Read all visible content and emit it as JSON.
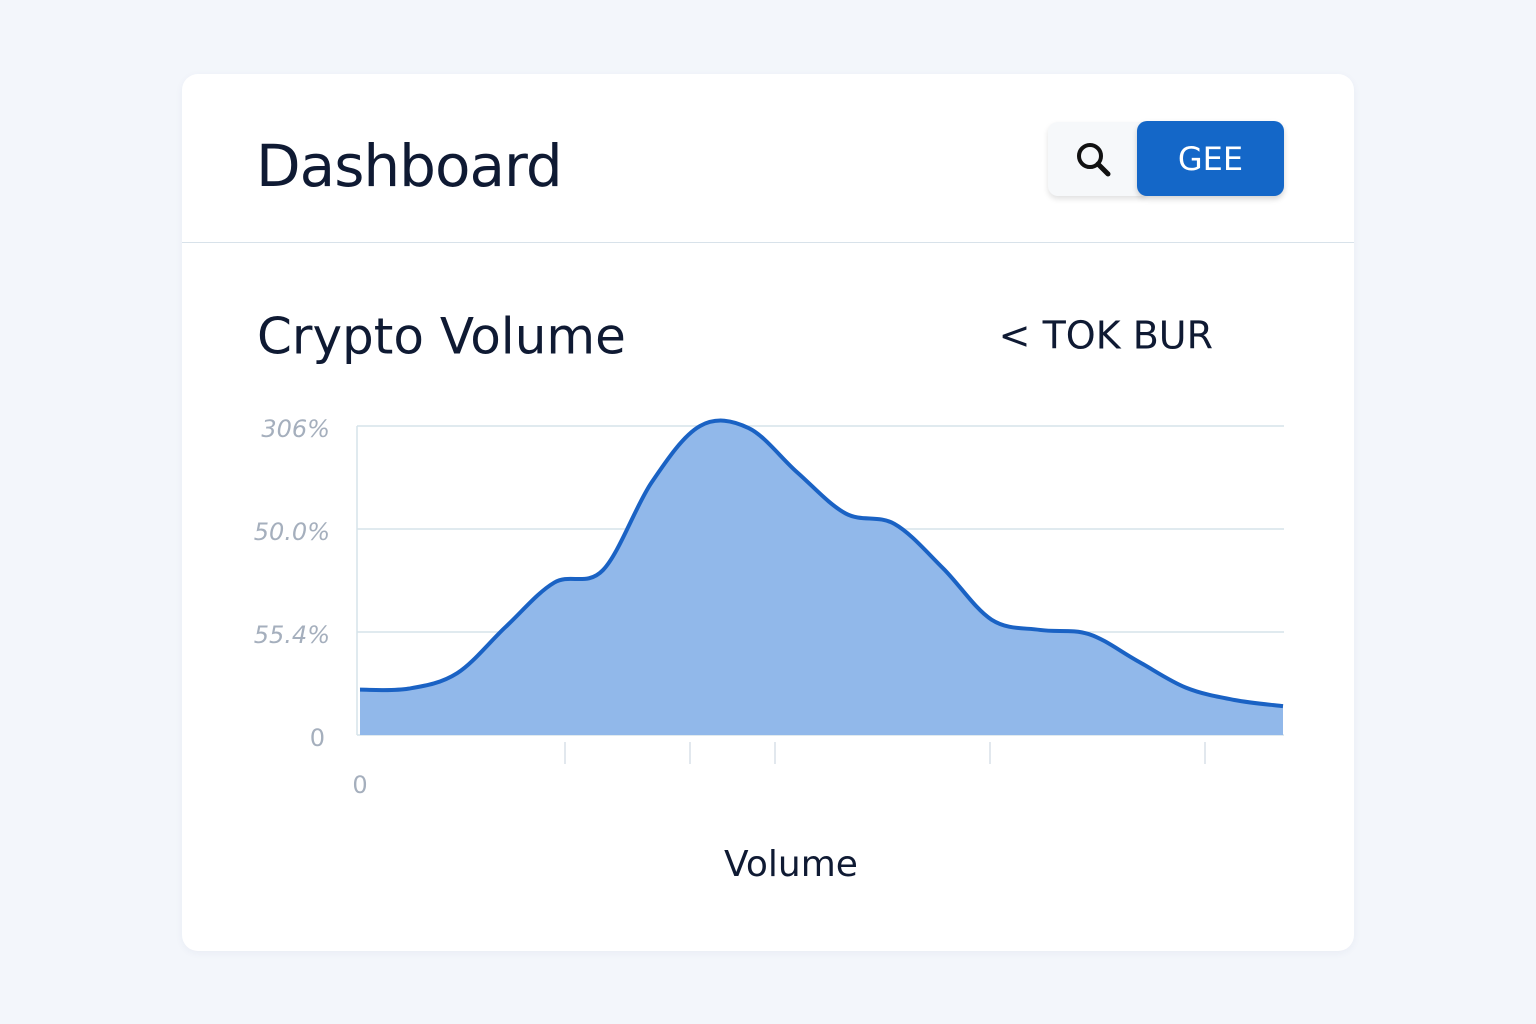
{
  "header": {
    "title": "Dashboard",
    "button": "GEE"
  },
  "chart_data": {
    "type": "area",
    "title": "Crypto Volume",
    "link": "< TOK BUR",
    "x_label": "Volume",
    "x_start": 0,
    "y_labels": [
      "0",
      "55.4%",
      "50.0%",
      "306%"
    ],
    "ylim": [
      0,
      3
    ],
    "grid": true,
    "color": "#1a62c4",
    "fill": "#91b8ea",
    "values": [
      0.44,
      0.45,
      0.6,
      1.05,
      1.48,
      1.6,
      2.45,
      3.0,
      2.98,
      2.55,
      2.15,
      2.05,
      1.62,
      1.12,
      1.02,
      0.98,
      0.72,
      0.46,
      0.34,
      0.28
    ]
  }
}
